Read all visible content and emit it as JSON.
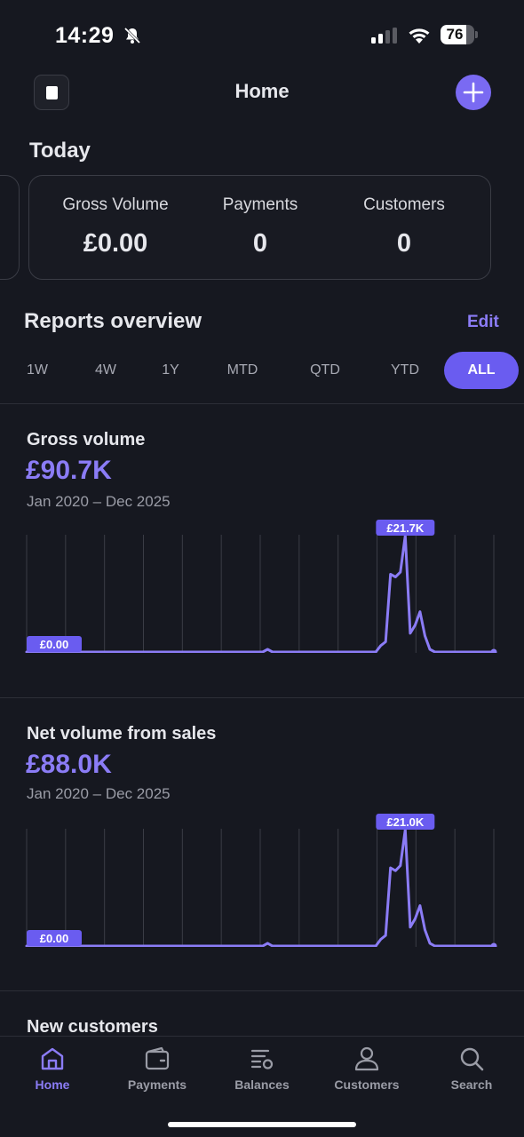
{
  "status_bar": {
    "time": "14:29",
    "battery": "76",
    "battery_level": 0.76,
    "bell_muted": true
  },
  "header": {
    "title": "Home",
    "account_icon": "account-switcher-icon",
    "add_icon": "plus-icon"
  },
  "today": {
    "title": "Today",
    "stats": [
      {
        "label": "Gross Volume",
        "value": "£0.00"
      },
      {
        "label": "Payments",
        "value": "0"
      },
      {
        "label": "Customers",
        "value": "0"
      }
    ]
  },
  "reports": {
    "title": "Reports overview",
    "edit_label": "Edit",
    "ranges": [
      "1W",
      "4W",
      "1Y",
      "MTD",
      "QTD",
      "YTD",
      "ALL"
    ],
    "selected_range": "ALL"
  },
  "sections": [
    {
      "title": "Gross volume",
      "value": "£90.7K",
      "range": "Jan 2020 – Dec 2025",
      "max_label": "£21.7K",
      "min_label": "£0.00"
    },
    {
      "title": "Net volume from sales",
      "value": "£88.0K",
      "range": "Jan 2020 – Dec 2025",
      "max_label": "£21.0K",
      "min_label": "£0.00"
    },
    {
      "title": "New customers"
    }
  ],
  "chart_data": [
    {
      "type": "line",
      "title": "Gross volume",
      "x_range": [
        "Jan 2020",
        "Dec 2025"
      ],
      "values": [
        0,
        0,
        0,
        0,
        0,
        0,
        0,
        0,
        0,
        0,
        0,
        0,
        0,
        0,
        0,
        0,
        0,
        0,
        0,
        0,
        0,
        0,
        0,
        0,
        0,
        0,
        0,
        0,
        0,
        0,
        0,
        0,
        0,
        0,
        0,
        0,
        0,
        0,
        0,
        0,
        0,
        0,
        0,
        0,
        0,
        0,
        0,
        0,
        0,
        0.5,
        0,
        0,
        0,
        0,
        0,
        0,
        0,
        0,
        0,
        0,
        0,
        0,
        0,
        0,
        0,
        0,
        0,
        0,
        0,
        0,
        0,
        0,
        1.2,
        1.9,
        14.5,
        14.0,
        14.9,
        21.7,
        3.5,
        5.0,
        7.5,
        3.0,
        0.5,
        0,
        0,
        0,
        0,
        0,
        0,
        0,
        0,
        0,
        0,
        0,
        0,
        0
      ],
      "ylim": [
        0,
        21.7
      ],
      "unit": "£K"
    },
    {
      "type": "line",
      "title": "Net volume from sales",
      "x_range": [
        "Jan 2020",
        "Dec 2025"
      ],
      "values": [
        0,
        0,
        0,
        0,
        0,
        0,
        0,
        0,
        0,
        0,
        0,
        0,
        0,
        0,
        0,
        0,
        0,
        0,
        0,
        0,
        0,
        0,
        0,
        0,
        0,
        0,
        0,
        0,
        0,
        0,
        0,
        0,
        0,
        0,
        0,
        0,
        0,
        0,
        0,
        0,
        0,
        0,
        0,
        0,
        0,
        0,
        0,
        0,
        0,
        0.5,
        0,
        0,
        0,
        0,
        0,
        0,
        0,
        0,
        0,
        0,
        0,
        0,
        0,
        0,
        0,
        0,
        0,
        0,
        0,
        0,
        0,
        0,
        1.2,
        1.9,
        14.1,
        13.6,
        14.5,
        21.0,
        3.4,
        4.9,
        7.3,
        2.9,
        0.5,
        0,
        0,
        0,
        0,
        0,
        0,
        0,
        0,
        0,
        0,
        0,
        0,
        0
      ],
      "ylim": [
        0,
        21.0
      ],
      "unit": "£K"
    }
  ],
  "tabs": [
    {
      "label": "Home",
      "icon": "home-icon",
      "active": true
    },
    {
      "label": "Payments",
      "icon": "wallet-icon",
      "active": false
    },
    {
      "label": "Balances",
      "icon": "balances-icon",
      "active": false
    },
    {
      "label": "Customers",
      "icon": "person-icon",
      "active": false
    },
    {
      "label": "Search",
      "icon": "search-icon",
      "active": false
    }
  ],
  "colors": {
    "accent": "#8b7cf6",
    "accent_strong": "#6a5cf0",
    "background": "#161820",
    "line": "#8b7cf6"
  }
}
